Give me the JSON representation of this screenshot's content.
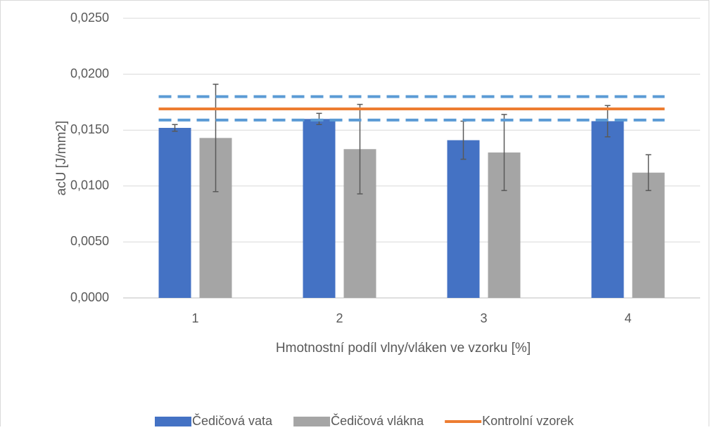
{
  "chart_data": {
    "type": "bar",
    "x_label": "Hmotnostní podíl vlny/vláken ve vzorku [%]",
    "y_label": "acU [J/mm2]",
    "categories": [
      "1",
      "2",
      "3",
      "4"
    ],
    "series": [
      {
        "name": "Čedičová vata",
        "color": "#4472c4",
        "values": [
          0.0152,
          0.016,
          0.0141,
          0.0158
        ],
        "errors": [
          0.0003,
          0.0005,
          0.0017,
          0.0014
        ]
      },
      {
        "name": "Čedičová vlákna",
        "color": "#a5a5a5",
        "values": [
          0.0143,
          0.0133,
          0.013,
          0.0112
        ],
        "errors": [
          0.0048,
          0.004,
          0.0034,
          0.0016
        ]
      }
    ],
    "control": {
      "name": "Kontrolní vzorek",
      "color": "#ed7d31",
      "value": 0.0169,
      "bounds": [
        0.0159,
        0.018
      ],
      "bounds_color": "#5b9bd5"
    },
    "ylim": [
      0,
      0.025
    ],
    "yticks": [
      {
        "value": 0,
        "label": "0,0000"
      },
      {
        "value": 0.005,
        "label": "0,0050"
      },
      {
        "value": 0.01,
        "label": "0,0100"
      },
      {
        "value": 0.015,
        "label": "0,0150"
      },
      {
        "value": 0.02,
        "label": "0,0200"
      },
      {
        "value": 0.025,
        "label": "0,0250"
      }
    ],
    "grid": true,
    "legend": "bottom"
  }
}
